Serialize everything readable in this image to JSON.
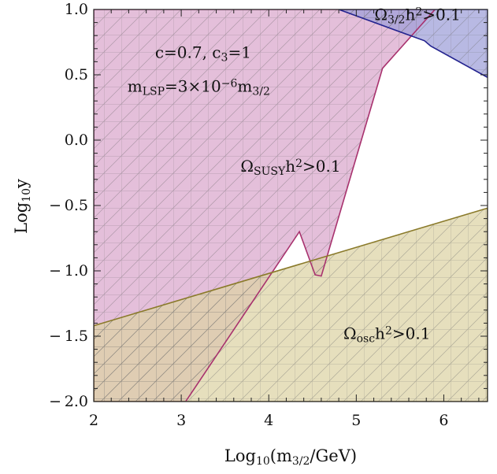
{
  "chart_data": {
    "type": "area",
    "xlabel": "Log",
    "xlabel_sub": "10",
    "xlabel_tail": "(m",
    "xlabel_sub2": "3/2",
    "xlabel_end": "/GeV)",
    "ylabel": "Log",
    "ylabel_sub": "10",
    "ylabel_end": "y",
    "xlim": [
      2,
      6.5
    ],
    "ylim": [
      -2.0,
      1.0
    ],
    "x_ticks": [
      {
        "value": 2,
        "label": "2"
      },
      {
        "value": 3,
        "label": "3"
      },
      {
        "value": 4,
        "label": "4"
      },
      {
        "value": 5,
        "label": "5"
      },
      {
        "value": 6,
        "label": "6"
      }
    ],
    "y_ticks": [
      {
        "value": 1.0,
        "label": "1.0"
      },
      {
        "value": 0.5,
        "label": "0.5"
      },
      {
        "value": 0.0,
        "label": "0.0"
      },
      {
        "value": -0.5,
        "label": "− 0.5"
      },
      {
        "value": -1.0,
        "label": "− 1.0"
      },
      {
        "value": -1.5,
        "label": "− 1.5"
      },
      {
        "value": -2.0,
        "label": "− 2.0"
      }
    ],
    "regions": [
      {
        "name": "ΩSUSYh²>0.1",
        "fill": "#d9a6cc",
        "stroke": "#a8326e",
        "points": [
          [
            2,
            1.0
          ],
          [
            5.9,
            1.0
          ],
          [
            5.3,
            0.55
          ],
          [
            4.6,
            -1.04
          ],
          [
            4.53,
            -1.03
          ],
          [
            4.35,
            -0.7
          ],
          [
            3.05,
            -2.0
          ],
          [
            2,
            -2.0
          ]
        ]
      },
      {
        "name": "Ωosch²>0.1",
        "fill": "#ddd3a3",
        "stroke": "#8a7a2a",
        "points": [
          [
            2,
            -1.42
          ],
          [
            6.5,
            -0.52
          ],
          [
            6.5,
            -2.0
          ],
          [
            2,
            -2.0
          ]
        ]
      },
      {
        "name": "Ω3/2h²>0.1",
        "fill": "#9d9ed8",
        "stroke": "#23238f",
        "points": [
          [
            4.8,
            1.0
          ],
          [
            6.5,
            1.0
          ],
          [
            6.5,
            0.48
          ],
          [
            5.85,
            0.72
          ],
          [
            5.78,
            0.76
          ]
        ]
      }
    ],
    "annotations": [
      {
        "id": "params1",
        "x": 3.25,
        "y": 0.63,
        "parts": [
          {
            "t": "c=0.7, c"
          },
          {
            "t": "3",
            "sub": true
          },
          {
            "t": "=1"
          }
        ]
      },
      {
        "id": "params2",
        "x": 3.2,
        "y": 0.37,
        "parts": [
          {
            "t": "m"
          },
          {
            "t": "LSP",
            "sub": true
          },
          {
            "t": "=3×10"
          },
          {
            "t": "−6",
            "sup": true
          },
          {
            "t": "m"
          },
          {
            "t": "3/2",
            "sub": true
          }
        ]
      },
      {
        "id": "susy",
        "x": 4.25,
        "y": -0.24,
        "parts": [
          {
            "t": "Ω"
          },
          {
            "t": "SUSY",
            "sub": true
          },
          {
            "t": "h"
          },
          {
            "t": "2",
            "sup": true
          },
          {
            "t": ">0.1"
          }
        ]
      },
      {
        "id": "osc",
        "x": 5.35,
        "y": -1.52,
        "parts": [
          {
            "t": "Ω"
          },
          {
            "t": "osc",
            "sub": true
          },
          {
            "t": "h"
          },
          {
            "t": "2",
            "sup": true
          },
          {
            "t": ">0.1"
          }
        ]
      },
      {
        "id": "grav",
        "x": 5.7,
        "y": 0.92,
        "parts": [
          {
            "t": "Ω"
          },
          {
            "t": "3/2",
            "sub": true
          },
          {
            "t": "h"
          },
          {
            "t": "2",
            "sup": true
          },
          {
            "t": ">0.1"
          }
        ]
      }
    ]
  }
}
